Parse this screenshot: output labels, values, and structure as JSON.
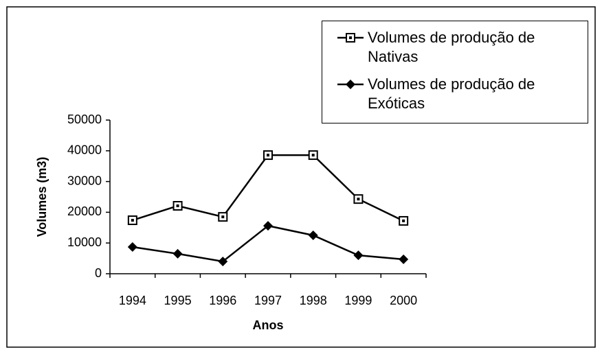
{
  "chart_data": {
    "type": "line",
    "x_label": "Anos",
    "y_label": "Volumes (m3)",
    "categories": [
      "1994",
      "1995",
      "1996",
      "1997",
      "1998",
      "1999",
      "2000"
    ],
    "series": [
      {
        "name": "Volumes de produção de Nativas",
        "color": "#000000",
        "marker": "square",
        "values": [
          17400,
          22100,
          18500,
          38600,
          38600,
          24300,
          17200
        ]
      },
      {
        "name": "Volumes de produção de Exóticas",
        "color": "#000000",
        "marker": "diamond",
        "values": [
          8700,
          6500,
          4000,
          15600,
          12500,
          6000,
          4700
        ]
      }
    ],
    "ylim": [
      0,
      50000
    ],
    "yticks": [
      0,
      10000,
      20000,
      30000,
      40000,
      50000
    ],
    "grid": false
  }
}
